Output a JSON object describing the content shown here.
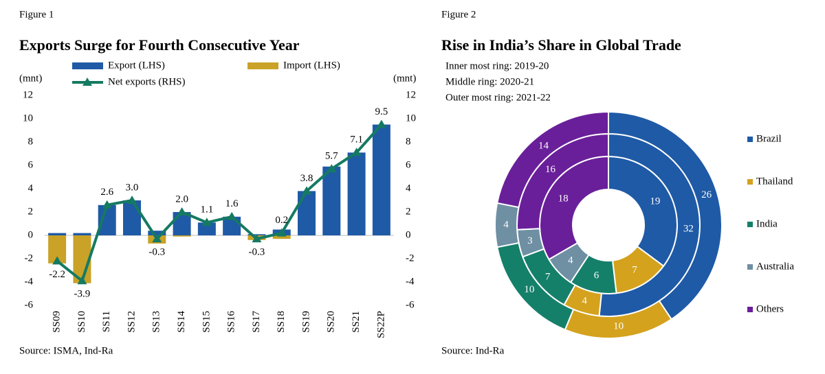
{
  "chart_data": [
    {
      "type": "bar",
      "figure": "Figure 1",
      "title": "Exports Surge for Fourth Consecutive Year",
      "ylabel": "(mnt)",
      "y2label": "(mnt)",
      "source": "Source: ISMA, Ind-Ra",
      "categories": [
        "SS09",
        "SS10",
        "SS11",
        "SS12",
        "SS13",
        "SS14",
        "SS15",
        "SS16",
        "SS17",
        "SS18",
        "SS19",
        "SS20",
        "SS21",
        "SS22P"
      ],
      "series": [
        {
          "name": "Export (LHS)",
          "color": "#1f5aa6",
          "values": [
            0.2,
            0.2,
            2.6,
            3.0,
            0.4,
            2.0,
            1.1,
            1.6,
            0.1,
            0.5,
            3.8,
            5.9,
            7.1,
            9.5
          ]
        },
        {
          "name": "Import (LHS)",
          "color": "#c9a227",
          "values": [
            -2.4,
            -4.1,
            0,
            0,
            -0.7,
            -0.1,
            0,
            0,
            -0.4,
            -0.3,
            0,
            0,
            0,
            0
          ]
        },
        {
          "name": "Net exports (RHS)",
          "color": "#157a62",
          "type": "line",
          "axis": "y2",
          "values": [
            -2.2,
            -3.9,
            2.6,
            3.0,
            -0.3,
            2.0,
            1.1,
            1.6,
            -0.3,
            0.2,
            3.8,
            5.7,
            7.1,
            9.5
          ],
          "value_labels": [
            "-2.2",
            "-3.9",
            "2.6",
            "3.0",
            "-0.3",
            "2.0",
            "1.1",
            "1.6",
            "-0.3",
            "0.2",
            "3.8",
            "5.7",
            "7.1",
            "9.5"
          ]
        }
      ],
      "ylim": [
        -6,
        12
      ],
      "yticks": [
        -6,
        -4,
        -2,
        0,
        2,
        4,
        6,
        8,
        10,
        12
      ],
      "y2lim": [
        -6,
        12
      ],
      "y2ticks": [
        -6,
        -4,
        -2,
        0,
        2,
        4,
        6,
        8,
        10,
        12
      ]
    },
    {
      "type": "donut",
      "figure": "Figure 2",
      "title": "Rise in India’s Share in Global Trade",
      "source": "Source: Ind-Ra",
      "categories": [
        "Brazil",
        "Thailand",
        "India",
        "Australia",
        "Others"
      ],
      "colors": [
        "#1f5aa6",
        "#d4a21d",
        "#15806a",
        "#6f8fa3",
        "#6a1f9a"
      ],
      "rings": [
        {
          "label": "Inner most ring: 2019-20",
          "values": [
            19,
            7,
            6,
            4,
            18
          ]
        },
        {
          "label": "Middle ring: 2020-21",
          "values": [
            32,
            4,
            7,
            3,
            16
          ]
        },
        {
          "label": "Outer most ring: 2021-22",
          "values": [
            26,
            10,
            10,
            4,
            14
          ]
        }
      ]
    }
  ]
}
